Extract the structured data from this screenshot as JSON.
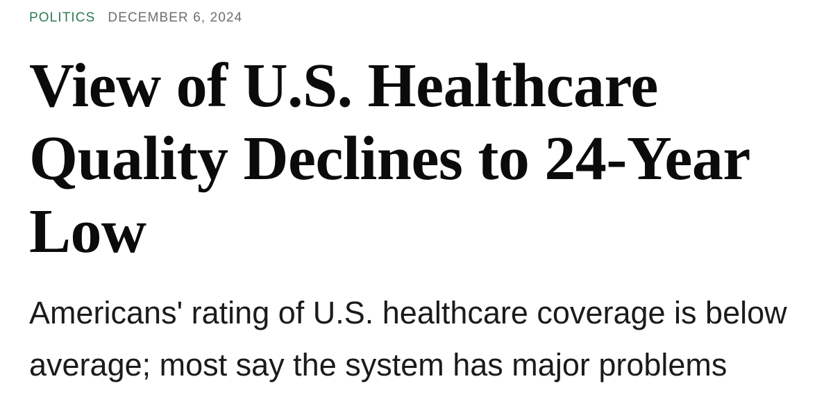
{
  "article": {
    "category": "POLITICS",
    "date": "DECEMBER 6, 2024",
    "headline": "View of U.S. Healthcare Quality Declines to 24-Year Low",
    "subtitle": "Americans' rating of U.S. healthcare coverage is below average; most say the system has major problems"
  },
  "colors": {
    "category_green": "#2c7a52",
    "date_gray": "#6d6e71",
    "headline_black": "#0b0b0b",
    "subtitle_black": "#1b1b1b",
    "background": "#ffffff"
  }
}
